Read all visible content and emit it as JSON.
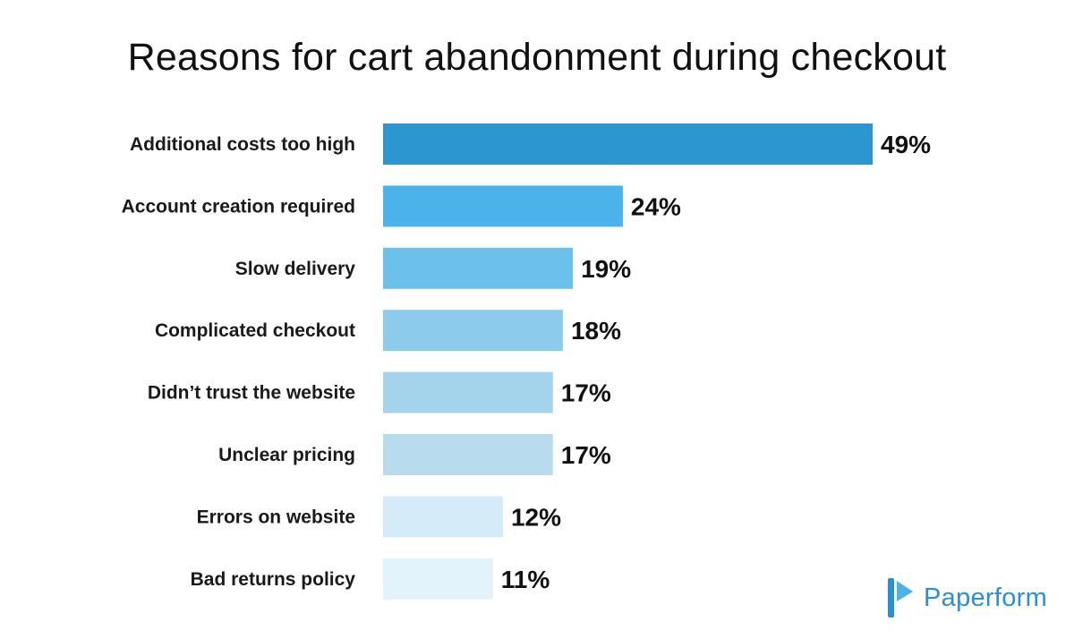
{
  "chart_data": {
    "type": "bar",
    "orientation": "horizontal",
    "title": "Reasons for cart abandonment during checkout",
    "categories": [
      "Additional costs too high",
      "Account creation required",
      "Slow delivery",
      "Complicated checkout",
      "Didn’t trust the website",
      "Unclear pricing",
      "Errors on website",
      "Bad returns policy"
    ],
    "values": [
      49,
      24,
      19,
      18,
      17,
      17,
      12,
      11
    ],
    "value_labels": [
      "49%",
      "24%",
      "19%",
      "18%",
      "17%",
      "17%",
      "12%",
      "11%"
    ],
    "bar_colors": [
      "#2b96cf",
      "#4cb3ea",
      "#6cc1ec",
      "#8ccbec",
      "#a3d4ec",
      "#b8dcee",
      "#d5ebf7",
      "#e2f3fc"
    ],
    "xlabel": "",
    "ylabel": "",
    "grid": false,
    "legend": "none"
  },
  "brand": {
    "name": "Paperform",
    "icon": "paperform-logo-icon",
    "color": "#2b8ed8"
  }
}
